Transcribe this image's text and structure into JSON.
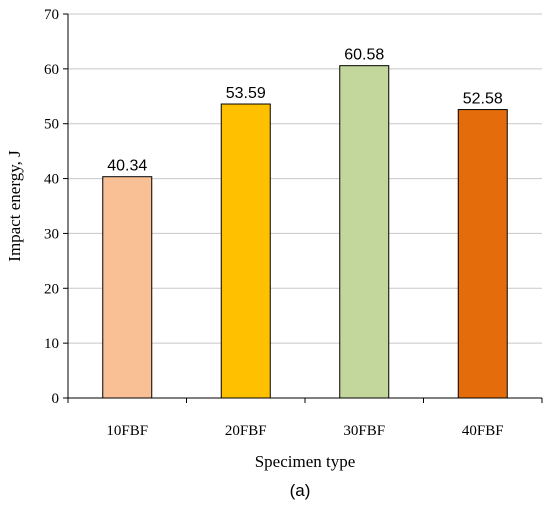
{
  "chart_data": {
    "type": "bar",
    "categories": [
      "10FBF",
      "20FBF",
      "30FBF",
      "40FBF"
    ],
    "values": [
      40.34,
      53.59,
      60.58,
      52.58
    ],
    "data_labels": [
      "40.34",
      "53.59",
      "60.58",
      "52.58"
    ],
    "bar_colors": [
      "#F9C096",
      "#FFC000",
      "#C3D69B",
      "#E46C0A"
    ],
    "xlabel": "Specimen type",
    "ylabel": "Impact energy, J",
    "ylim": [
      0,
      70
    ],
    "yticks": [
      0,
      10,
      20,
      30,
      40,
      50,
      60,
      70
    ],
    "grid": true,
    "legend": "none"
  },
  "caption": "(a)"
}
